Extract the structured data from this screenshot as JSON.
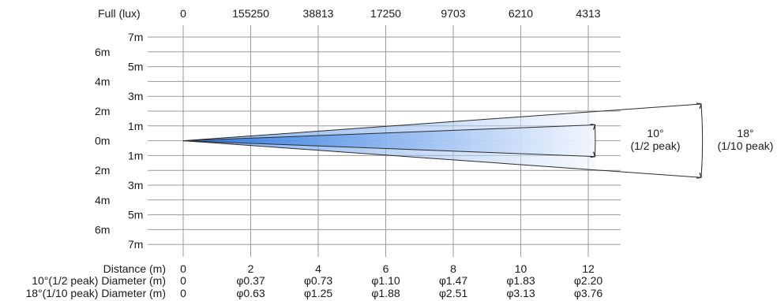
{
  "header": {
    "label": "Full (lux)",
    "values": [
      "0",
      "155250",
      "38813",
      "17250",
      "9703",
      "6210",
      "4313"
    ]
  },
  "rows": [
    {
      "label": "7m",
      "side": "right"
    },
    {
      "label": "6m",
      "side": "left"
    },
    {
      "label": "5m",
      "side": "right"
    },
    {
      "label": "4m",
      "side": "left"
    },
    {
      "label": "3m",
      "side": "right"
    },
    {
      "label": "2m",
      "side": "left"
    },
    {
      "label": "1m",
      "side": "right"
    },
    {
      "label": "0m",
      "side": "left"
    },
    {
      "label": "1m",
      "side": "right"
    },
    {
      "label": "2m",
      "side": "left"
    },
    {
      "label": "3m",
      "side": "right"
    },
    {
      "label": "4m",
      "side": "left"
    },
    {
      "label": "5m",
      "side": "right"
    },
    {
      "label": "6m",
      "side": "left"
    },
    {
      "label": "7m",
      "side": "right"
    }
  ],
  "footer": {
    "distance": {
      "label": "Distance (m)",
      "values": [
        "0",
        "2",
        "4",
        "6",
        "8",
        "10",
        "12"
      ]
    },
    "diameter_half_peak": {
      "label": "10°(1/2 peak) Diameter (m)",
      "values": [
        "0",
        "φ0.37",
        "φ0.73",
        "φ1.10",
        "φ1.47",
        "φ1.83",
        "φ2.20"
      ]
    },
    "diameter_tenth_peak": {
      "label": "18°(1/10 peak) Diameter (m)",
      "values": [
        "0",
        "φ0.63",
        "φ1.25",
        "φ1.88",
        "φ2.51",
        "φ3.13",
        "φ3.76"
      ]
    }
  },
  "beam": {
    "half_peak_angle_deg": 10,
    "tenth_peak_angle_deg": 18,
    "half_peak_angle_label": "10°",
    "half_peak_name": "(1/2 peak)",
    "tenth_peak_angle_label": "18°",
    "tenth_peak_name": "(1/10 peak)",
    "colors": {
      "core": "#1f6fe0",
      "fade": "#ffffff",
      "grid": "#9a9a9a",
      "lines": "#2b2b2b"
    }
  }
}
